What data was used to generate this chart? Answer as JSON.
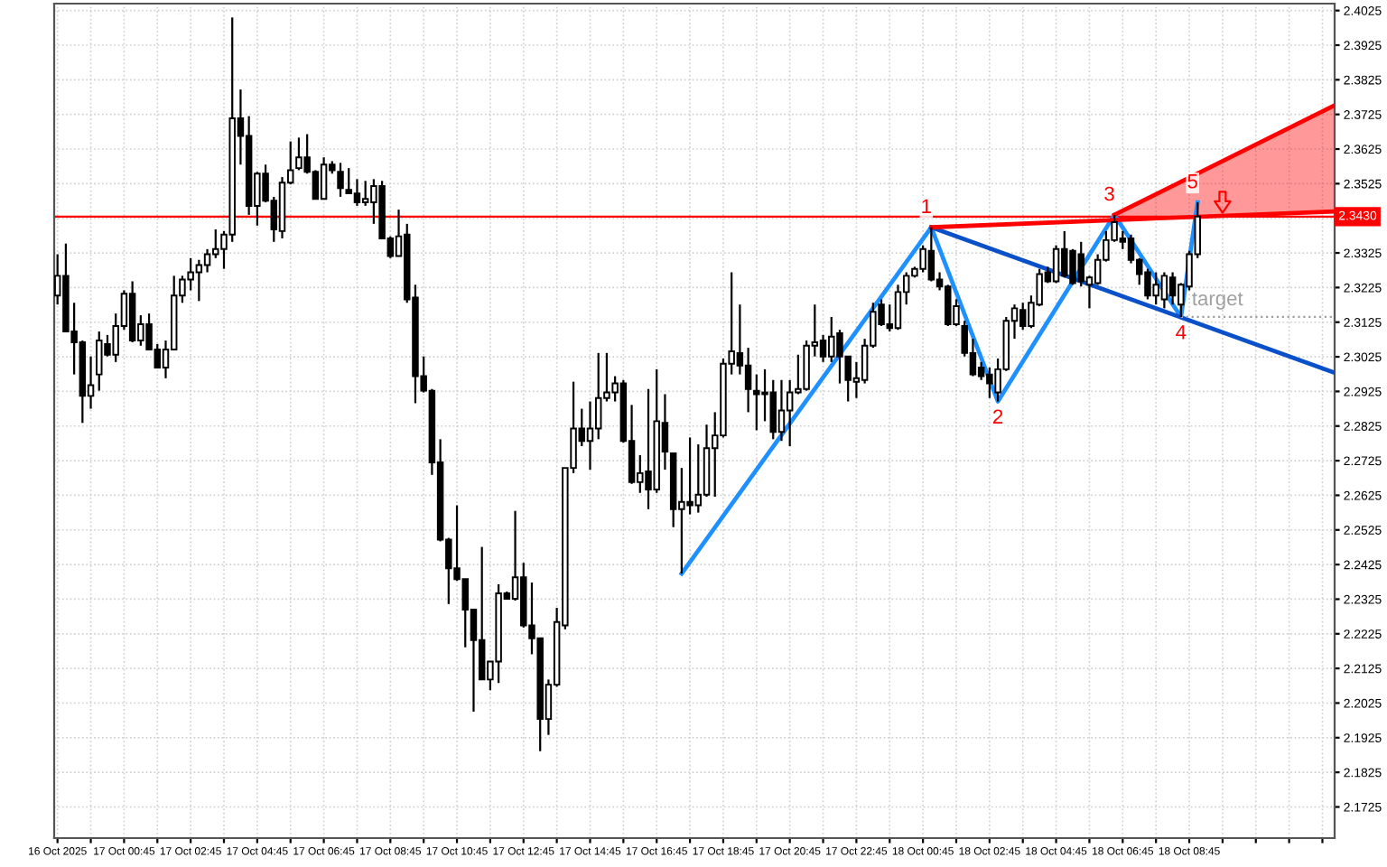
{
  "chart_data": {
    "type": "candlestick",
    "x": [
      "2025-10-16T22:45",
      "2025-10-16T23:00",
      "2025-10-16T23:15",
      "2025-10-16T23:30",
      "2025-10-16T23:45",
      "2025-10-17T00:00",
      "2025-10-17T00:15",
      "2025-10-17T00:30",
      "2025-10-17T00:45",
      "2025-10-17T01:00",
      "2025-10-17T01:15",
      "2025-10-17T01:30",
      "2025-10-17T01:45",
      "2025-10-17T02:00",
      "2025-10-17T02:15",
      "2025-10-17T02:30",
      "2025-10-17T02:45",
      "2025-10-17T03:00",
      "2025-10-17T03:15",
      "2025-10-17T03:30",
      "2025-10-17T03:45",
      "2025-10-17T04:00",
      "2025-10-17T04:15",
      "2025-10-17T04:30",
      "2025-10-17T04:45",
      "2025-10-17T05:00",
      "2025-10-17T05:15",
      "2025-10-17T05:30",
      "2025-10-17T05:45",
      "2025-10-17T06:00",
      "2025-10-17T06:15",
      "2025-10-17T06:30",
      "2025-10-17T06:45",
      "2025-10-17T07:00",
      "2025-10-17T07:15",
      "2025-10-17T07:30",
      "2025-10-17T07:45",
      "2025-10-17T08:00",
      "2025-10-17T08:15",
      "2025-10-17T08:30",
      "2025-10-17T08:45",
      "2025-10-17T09:00",
      "2025-10-17T09:15",
      "2025-10-17T09:30",
      "2025-10-17T09:45",
      "2025-10-17T10:00",
      "2025-10-17T10:15",
      "2025-10-17T10:30",
      "2025-10-17T10:45",
      "2025-10-17T11:00",
      "2025-10-17T11:15",
      "2025-10-17T11:30",
      "2025-10-17T11:45",
      "2025-10-17T12:00",
      "2025-10-17T12:15",
      "2025-10-17T12:30",
      "2025-10-17T12:45",
      "2025-10-17T13:00",
      "2025-10-17T13:15",
      "2025-10-17T13:30",
      "2025-10-17T13:45",
      "2025-10-17T14:00",
      "2025-10-17T14:15",
      "2025-10-17T14:30",
      "2025-10-17T14:45",
      "2025-10-17T15:00",
      "2025-10-17T15:15",
      "2025-10-17T15:30",
      "2025-10-17T15:45",
      "2025-10-17T16:00",
      "2025-10-17T16:15",
      "2025-10-17T16:30",
      "2025-10-17T16:45",
      "2025-10-17T17:00",
      "2025-10-17T17:15",
      "2025-10-17T17:30",
      "2025-10-17T17:45",
      "2025-10-17T18:00",
      "2025-10-17T18:15",
      "2025-10-17T18:30",
      "2025-10-17T18:45",
      "2025-10-17T19:00",
      "2025-10-17T19:15",
      "2025-10-17T19:30",
      "2025-10-17T19:45",
      "2025-10-17T20:00",
      "2025-10-17T20:15",
      "2025-10-17T20:30",
      "2025-10-17T20:45",
      "2025-10-17T21:00",
      "2025-10-17T21:15",
      "2025-10-17T21:30",
      "2025-10-17T21:45",
      "2025-10-17T22:00",
      "2025-10-17T22:15",
      "2025-10-17T22:30",
      "2025-10-17T22:45",
      "2025-10-17T23:00",
      "2025-10-17T23:15",
      "2025-10-17T23:30",
      "2025-10-17T23:45",
      "2025-10-18T00:00",
      "2025-10-18T00:15",
      "2025-10-18T00:30",
      "2025-10-18T00:45",
      "2025-10-18T01:00",
      "2025-10-18T01:15",
      "2025-10-18T01:30",
      "2025-10-18T01:45",
      "2025-10-18T02:00",
      "2025-10-18T02:15",
      "2025-10-18T02:30",
      "2025-10-18T02:45",
      "2025-10-18T03:00",
      "2025-10-18T03:15",
      "2025-10-18T03:30",
      "2025-10-18T03:45",
      "2025-10-18T04:00",
      "2025-10-18T04:15",
      "2025-10-18T04:30",
      "2025-10-18T04:45",
      "2025-10-18T05:00",
      "2025-10-18T05:15",
      "2025-10-18T05:30",
      "2025-10-18T05:45",
      "2025-10-18T06:00",
      "2025-10-18T06:15",
      "2025-10-18T06:30",
      "2025-10-18T06:45",
      "2025-10-18T07:00",
      "2025-10-18T07:15",
      "2025-10-18T07:30",
      "2025-10-18T07:45",
      "2025-10-18T08:00",
      "2025-10-18T08:15",
      "2025-10-18T08:30",
      "2025-10-18T08:45",
      "2025-10-18T09:00"
    ],
    "ohlc": [
      [
        2.3202,
        2.3321,
        2.3176,
        2.3259
      ],
      [
        2.3259,
        2.3352,
        2.3098,
        2.3098
      ],
      [
        2.3098,
        2.3181,
        2.2974,
        2.3067
      ],
      [
        2.3067,
        2.3072,
        2.2834,
        2.2912
      ],
      [
        2.2912,
        2.3026,
        2.2875,
        2.2943
      ],
      [
        2.2974,
        2.3098,
        2.2927,
        2.3072
      ],
      [
        2.3062,
        2.3088,
        2.3026,
        2.3031
      ],
      [
        2.3031,
        2.315,
        2.301,
        2.3114
      ],
      [
        2.3114,
        2.3217,
        2.3103,
        2.3207
      ],
      [
        2.3207,
        2.3243,
        2.3067,
        2.3072
      ],
      [
        2.3072,
        2.3145,
        2.3057,
        2.3119
      ],
      [
        2.3119,
        2.315,
        2.3046,
        2.3046
      ],
      [
        2.3046,
        2.3062,
        2.2994,
        2.2994
      ],
      [
        2.2994,
        2.3072,
        2.2963,
        2.3046
      ],
      [
        2.3046,
        2.3259,
        2.3046,
        2.3202
      ],
      [
        2.3202,
        2.3259,
        2.3181,
        2.3248
      ],
      [
        2.3248,
        2.331,
        2.3217,
        2.3269
      ],
      [
        2.3269,
        2.3305,
        2.3186,
        2.329
      ],
      [
        2.329,
        2.3336,
        2.3269,
        2.3321
      ],
      [
        2.3321,
        2.3393,
        2.331,
        2.3336
      ],
      [
        2.3336,
        2.3388,
        2.3279,
        2.3378
      ],
      [
        2.3378,
        2.4005,
        2.3357,
        2.3714
      ],
      [
        2.3714,
        2.3797,
        2.358,
        2.3663
      ],
      [
        2.3663,
        2.372,
        2.3435,
        2.3461
      ],
      [
        2.3461,
        2.3559,
        2.3404,
        2.3554
      ],
      [
        2.3554,
        2.358,
        2.3471,
        2.3476
      ],
      [
        2.3476,
        2.3487,
        2.3357,
        2.3393
      ],
      [
        2.3388,
        2.3544,
        2.3367,
        2.3528
      ],
      [
        2.3528,
        2.3647,
        2.3523,
        2.3564
      ],
      [
        2.357,
        2.3658,
        2.3564,
        2.3601
      ],
      [
        2.3601,
        2.3668,
        2.3554,
        2.3559
      ],
      [
        2.3559,
        2.3564,
        2.3481,
        2.3481
      ],
      [
        2.3481,
        2.3601,
        2.3481,
        2.358
      ],
      [
        2.358,
        2.359,
        2.3554,
        2.3564
      ],
      [
        2.3559,
        2.3585,
        2.3487,
        2.3512
      ],
      [
        2.3507,
        2.357,
        2.3497,
        2.3497
      ],
      [
        2.3497,
        2.3538,
        2.3461,
        2.3471
      ],
      [
        2.3471,
        2.3533,
        2.3461,
        2.3481
      ],
      [
        2.3471,
        2.3538,
        2.3409,
        2.3518
      ],
      [
        2.3518,
        2.3533,
        2.3367,
        2.3367
      ],
      [
        2.3367,
        2.3373,
        2.331,
        2.3316
      ],
      [
        2.3316,
        2.345,
        2.3316,
        2.3373
      ],
      [
        2.3378,
        2.3409,
        2.3181,
        2.3191
      ],
      [
        2.3196,
        2.3233,
        2.2891,
        2.2969
      ],
      [
        2.2969,
        2.3026,
        2.2922,
        2.2927
      ],
      [
        2.2927,
        2.2932,
        2.2684,
        2.272
      ],
      [
        2.272,
        2.2787,
        2.2492,
        2.2497
      ],
      [
        2.2497,
        2.2502,
        2.2311,
        2.2414
      ],
      [
        2.2414,
        2.2596,
        2.2378,
        2.2383
      ],
      [
        2.2383,
        2.2383,
        2.2186,
        2.2295
      ],
      [
        2.2295,
        2.2295,
        2.2,
        2.2207
      ],
      [
        2.2207,
        2.2476,
        2.2093,
        2.2093
      ],
      [
        2.2093,
        2.2145,
        2.2062,
        2.2145
      ],
      [
        2.2145,
        2.2368,
        2.2083,
        2.2342
      ],
      [
        2.2342,
        2.2347,
        2.2326,
        2.2326
      ],
      [
        2.2326,
        2.258,
        2.2321,
        2.2388
      ],
      [
        2.2388,
        2.243,
        2.2243,
        2.2249
      ],
      [
        2.2249,
        2.2373,
        2.2166,
        2.2212
      ],
      [
        2.2212,
        2.2212,
        2.1886,
        2.1979
      ],
      [
        2.1979,
        2.2093,
        2.1933,
        2.2078
      ],
      [
        2.2078,
        2.23,
        2.2072,
        2.2259
      ],
      [
        2.2249,
        2.2704,
        2.2238,
        2.2704
      ],
      [
        2.2704,
        2.2953,
        2.2689,
        2.2818
      ],
      [
        2.2818,
        2.2875,
        2.2767,
        2.2782
      ],
      [
        2.2782,
        2.2896,
        2.2699,
        2.2818
      ],
      [
        2.2818,
        2.3036,
        2.2787,
        2.2906
      ],
      [
        2.2906,
        2.3036,
        2.2896,
        2.2922
      ],
      [
        2.2922,
        2.2969,
        2.2896,
        2.2948
      ],
      [
        2.2948,
        2.2958,
        2.2777,
        2.2782
      ],
      [
        2.2782,
        2.2886,
        2.2658,
        2.2663
      ],
      [
        2.2663,
        2.2741,
        2.2632,
        2.2689
      ],
      [
        2.2694,
        2.2932,
        2.2585,
        2.2642
      ],
      [
        2.2642,
        2.2989,
        2.2632,
        2.2839
      ],
      [
        2.2834,
        2.2917,
        2.2699,
        2.2751
      ],
      [
        2.2746,
        2.2746,
        2.2533,
        2.2585
      ],
      [
        2.2585,
        2.2704,
        2.2399,
        2.2606
      ],
      [
        2.2606,
        2.2792,
        2.257,
        2.2596
      ],
      [
        2.2596,
        2.2772,
        2.2575,
        2.2627
      ],
      [
        2.2627,
        2.2829,
        2.2621,
        2.2761
      ],
      [
        2.2761,
        2.2865,
        2.2621,
        2.2798
      ],
      [
        2.2798,
        2.302,
        2.2792,
        2.3005
      ],
      [
        2.3005,
        2.3269,
        2.2974,
        2.3041
      ],
      [
        2.3036,
        2.3176,
        2.2974,
        2.3
      ],
      [
        2.3,
        2.3051,
        2.2865,
        2.2932
      ],
      [
        2.2927,
        2.2974,
        2.2813,
        2.2917
      ],
      [
        2.2922,
        2.2989,
        2.2839,
        2.2917
      ],
      [
        2.2922,
        2.2958,
        2.2787,
        2.2808
      ],
      [
        2.2808,
        2.2958,
        2.2782,
        2.287
      ],
      [
        2.287,
        2.2958,
        2.2767,
        2.2922
      ],
      [
        2.2922,
        2.3031,
        2.2917,
        2.2932
      ],
      [
        2.2932,
        2.3072,
        2.2927,
        2.3057
      ],
      [
        2.3057,
        2.3176,
        2.3026,
        2.3067
      ],
      [
        2.3072,
        2.3088,
        2.301,
        2.3026
      ],
      [
        2.3026,
        2.314,
        2.301,
        2.3083
      ],
      [
        2.3093,
        2.3103,
        2.2948,
        2.3026
      ],
      [
        2.3026,
        2.3026,
        2.2896,
        2.2958
      ],
      [
        2.2953,
        2.301,
        2.2906,
        2.2963
      ],
      [
        2.2958,
        2.3077,
        2.2948,
        2.3057
      ],
      [
        2.3057,
        2.3181,
        2.3051,
        2.3155
      ],
      [
        2.3176,
        2.3191,
        2.3114,
        2.3119
      ],
      [
        2.3119,
        2.3176,
        2.3098,
        2.3108
      ],
      [
        2.3108,
        2.3233,
        2.3103,
        2.3212
      ],
      [
        2.3212,
        2.3269,
        2.3176,
        2.3259
      ],
      [
        2.3259,
        2.3285,
        2.3254,
        2.3279
      ],
      [
        2.3279,
        2.3347,
        2.3269,
        2.3336
      ],
      [
        2.3331,
        2.3399,
        2.3243,
        2.3248
      ],
      [
        2.3248,
        2.3269,
        2.3217,
        2.3228
      ],
      [
        2.3228,
        2.3233,
        2.3114,
        2.3119
      ],
      [
        2.3119,
        2.3191,
        2.3114,
        2.3171
      ],
      [
        2.3114,
        2.3129,
        2.3026,
        2.3036
      ],
      [
        2.3036,
        2.3077,
        2.2969,
        2.2974
      ],
      [
        2.2994,
        2.301,
        2.2958,
        2.2969
      ],
      [
        2.2974,
        2.2994,
        2.2906,
        2.2948
      ],
      [
        2.2922,
        2.302,
        2.2896,
        2.2989
      ],
      [
        2.2989,
        2.314,
        2.2984,
        2.3129
      ],
      [
        2.3129,
        2.3176,
        2.3077,
        2.3165
      ],
      [
        2.316,
        2.3181,
        2.3103,
        2.3114
      ],
      [
        2.3114,
        2.3202,
        2.3108,
        2.3181
      ],
      [
        2.3176,
        2.3279,
        2.3171,
        2.3264
      ],
      [
        2.3269,
        2.3285,
        2.3238,
        2.3243
      ],
      [
        2.3243,
        2.3347,
        2.3238,
        2.3336
      ],
      [
        2.3336,
        2.3388,
        2.3254,
        2.3259
      ],
      [
        2.3331,
        2.3336,
        2.3233,
        2.3238
      ],
      [
        2.3321,
        2.3357,
        2.3228,
        2.3243
      ],
      [
        2.3233,
        2.3259,
        2.3165,
        2.3254
      ],
      [
        2.3238,
        2.3321,
        2.3233,
        2.3305
      ],
      [
        2.3305,
        2.3388,
        2.33,
        2.3362
      ],
      [
        2.3362,
        2.3435,
        2.3357,
        2.3414
      ],
      [
        2.3367,
        2.3388,
        2.3336,
        2.3357
      ],
      [
        2.3367,
        2.3378,
        2.3295,
        2.3305
      ],
      [
        2.3305,
        2.331,
        2.3233,
        2.3264
      ],
      [
        2.3269,
        2.3279,
        2.3191,
        2.3202
      ],
      [
        2.3202,
        2.3269,
        2.3176,
        2.3233
      ],
      [
        2.3191,
        2.3269,
        2.3165,
        2.3259
      ],
      [
        2.3254,
        2.3269,
        2.3176,
        2.3202
      ],
      [
        2.3176,
        2.3238,
        2.314,
        2.3233
      ],
      [
        2.3228,
        2.3331,
        2.3217,
        2.3321
      ],
      [
        2.3321,
        2.3471,
        2.331,
        2.343
      ]
    ],
    "series": [
      {
        "type": "line",
        "color": "#1e90ff",
        "x": [
          "2025-10-17T17:30",
          "2025-10-18T01:00",
          "2025-10-18T03:00",
          "2025-10-18T06:30",
          "2025-10-18T08:30",
          "2025-10-18T09:00"
        ],
        "values": [
          2.2399,
          2.3399,
          2.2896,
          2.3435,
          2.314,
          2.3471
        ]
      },
      {
        "type": "line",
        "color": "#0a50c8",
        "x": [
          "2025-10-18T01:00",
          "2025-10-18T13:07"
        ],
        "values": [
          2.3399,
          2.2979
        ]
      },
      {
        "type": "line",
        "color": "#ff0000",
        "x": [
          "2025-10-18T01:00",
          "2025-10-18T13:07"
        ],
        "values": [
          2.3399,
          2.3445
        ]
      },
      {
        "type": "line",
        "color": "#ff0000",
        "x": [
          "2025-10-18T06:30",
          "2025-10-18T13:07"
        ],
        "values": [
          2.3435,
          2.3751
        ],
        "lower": [
          2.342,
          2.3445
        ],
        "upper": [
          2.3435,
          2.3751
        ]
      },
      {
        "type": "line",
        "color": "#a0a0a0",
        "line_style": "dotted",
        "x": [
          "2025-10-18T08:30",
          "2025-10-18T13:07"
        ],
        "values": [
          2.314,
          2.314
        ]
      }
    ],
    "ref_lines": [
      {
        "axis": "y",
        "value": 2.343,
        "label": "2.3430",
        "color": "#ff0000"
      }
    ],
    "annotations": [
      {
        "text": "1",
        "x": "2025-10-18T01:00",
        "y": 2.3399
      },
      {
        "text": "2",
        "x": "2025-10-18T03:00",
        "y": 2.2896
      },
      {
        "text": "3",
        "x": "2025-10-18T06:30",
        "y": 2.3435
      },
      {
        "text": "4",
        "x": "2025-10-18T08:30",
        "y": 2.314
      },
      {
        "text": "5",
        "x": "2025-10-18T09:00",
        "y": 2.3471
      },
      {
        "text": "target",
        "x": "2025-10-18T08:45",
        "y": 2.314
      }
    ],
    "xlim": [
      "2025-10-16T22:39",
      "2025-10-18T13:07"
    ],
    "xticks": [
      {
        "value": "2025-10-16T22:45",
        "label": "16 Oct 2025"
      },
      {
        "value": "2025-10-16T23:45",
        "label": null
      },
      {
        "value": "2025-10-17T00:45",
        "label": "17 Oct 00:45"
      },
      {
        "value": "2025-10-17T01:45",
        "label": null
      },
      {
        "value": "2025-10-17T02:45",
        "label": "17 Oct 02:45"
      },
      {
        "value": "2025-10-17T03:45",
        "label": null
      },
      {
        "value": "2025-10-17T04:45",
        "label": "17 Oct 04:45"
      },
      {
        "value": "2025-10-17T05:45",
        "label": null
      },
      {
        "value": "2025-10-17T06:45",
        "label": "17 Oct 06:45"
      },
      {
        "value": "2025-10-17T07:45",
        "label": null
      },
      {
        "value": "2025-10-17T08:45",
        "label": "17 Oct 08:45"
      },
      {
        "value": "2025-10-17T09:45",
        "label": null
      },
      {
        "value": "2025-10-17T10:45",
        "label": "17 Oct 10:45"
      },
      {
        "value": "2025-10-17T11:45",
        "label": null
      },
      {
        "value": "2025-10-17T12:45",
        "label": "17 Oct 12:45"
      },
      {
        "value": "2025-10-17T13:45",
        "label": null
      },
      {
        "value": "2025-10-17T14:45",
        "label": "17 Oct 14:45"
      },
      {
        "value": "2025-10-17T15:45",
        "label": null
      },
      {
        "value": "2025-10-17T16:45",
        "label": "17 Oct 16:45"
      },
      {
        "value": "2025-10-17T17:45",
        "label": null
      },
      {
        "value": "2025-10-17T18:45",
        "label": "17 Oct 18:45"
      },
      {
        "value": "2025-10-17T19:45",
        "label": null
      },
      {
        "value": "2025-10-17T20:45",
        "label": "17 Oct 20:45"
      },
      {
        "value": "2025-10-17T21:45",
        "label": null
      },
      {
        "value": "2025-10-17T22:45",
        "label": "17 Oct 22:45"
      },
      {
        "value": "2025-10-17T23:45",
        "label": null
      },
      {
        "value": "2025-10-18T00:45",
        "label": "18 Oct 00:45"
      },
      {
        "value": "2025-10-18T01:45",
        "label": null
      },
      {
        "value": "2025-10-18T02:45",
        "label": "18 Oct 02:45"
      },
      {
        "value": "2025-10-18T03:45",
        "label": null
      },
      {
        "value": "2025-10-18T04:45",
        "label": "18 Oct 04:45"
      },
      {
        "value": "2025-10-18T05:45",
        "label": null
      },
      {
        "value": "2025-10-18T06:45",
        "label": "18 Oct 06:45"
      },
      {
        "value": "2025-10-18T07:45",
        "label": null
      },
      {
        "value": "2025-10-18T08:45",
        "label": "18 Oct 08:45"
      },
      {
        "value": "2025-10-18T09:45",
        "label": null
      },
      {
        "value": "2025-10-18T10:45",
        "label": null
      },
      {
        "value": "2025-10-18T11:45",
        "label": null
      },
      {
        "value": "2025-10-18T12:45",
        "label": null
      }
    ],
    "ylim": [
      2.1635,
      2.4045
    ],
    "yticks": [
      2.1725,
      2.1825,
      2.1925,
      2.2025,
      2.2125,
      2.2225,
      2.2325,
      2.2425,
      2.2525,
      2.2625,
      2.2725,
      2.2825,
      2.2925,
      2.3025,
      2.3125,
      2.3225,
      2.3325,
      {
        "value": 2.3425,
        "label": null
      },
      2.3525,
      2.3625,
      2.3725,
      2.3825,
      2.3925,
      2.4025
    ],
    "grid": true
  }
}
